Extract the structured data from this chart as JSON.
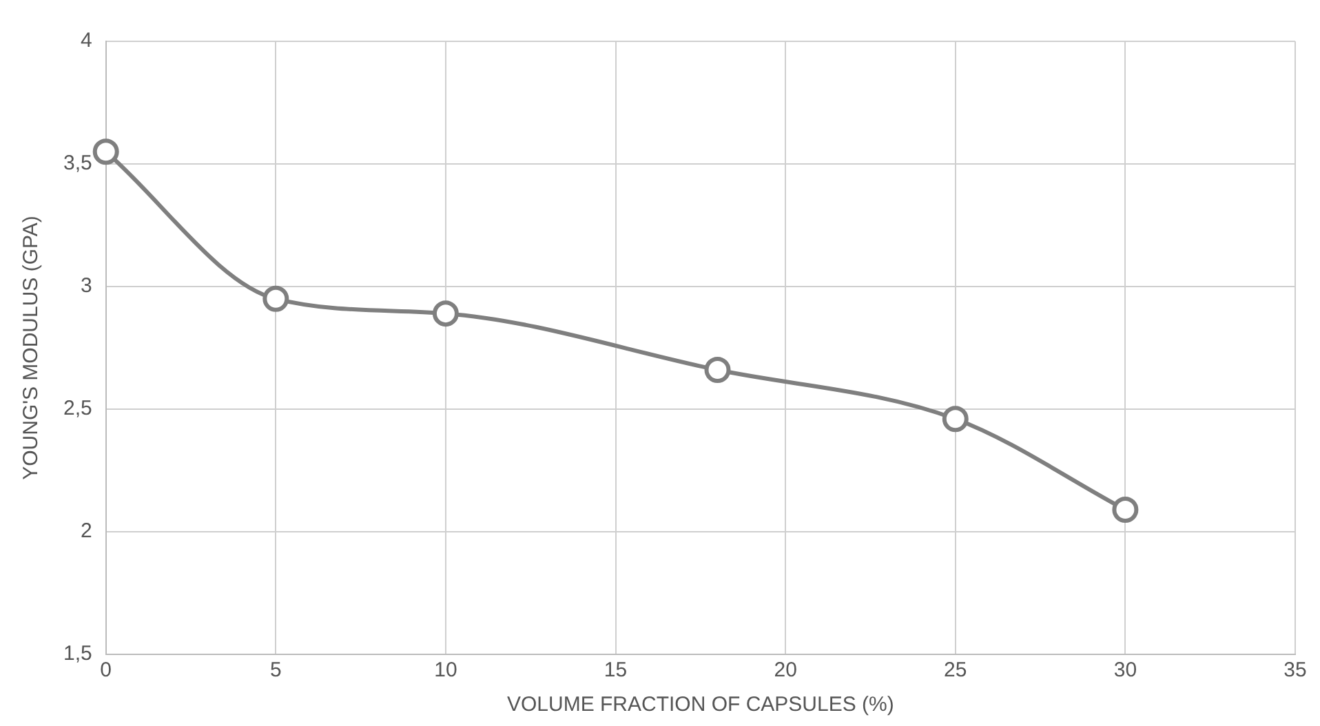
{
  "chart_data": {
    "type": "line",
    "xlabel": "VOLUME FRACTION OF CAPSULES (%)",
    "ylabel": "YOUNG'S MODULUS (GPA)",
    "x": [
      0,
      5,
      10,
      18,
      25,
      30
    ],
    "series": [
      {
        "color": "#7f7f7f",
        "values": [
          3.55,
          2.95,
          2.89,
          2.66,
          2.46,
          2.09
        ]
      }
    ],
    "xlim": [
      0,
      35
    ],
    "xticks": [
      0,
      5,
      10,
      15,
      20,
      25,
      30,
      35
    ],
    "ylim": [
      1.5,
      4
    ],
    "yticks": [
      {
        "value": 1.5,
        "label": "1,5"
      },
      2,
      {
        "value": 2.5,
        "label": "2,5"
      },
      3,
      {
        "value": 3.5,
        "label": "3,5"
      },
      4
    ],
    "grid": true,
    "legend": false,
    "marker": "circle",
    "line_style": "solid"
  }
}
